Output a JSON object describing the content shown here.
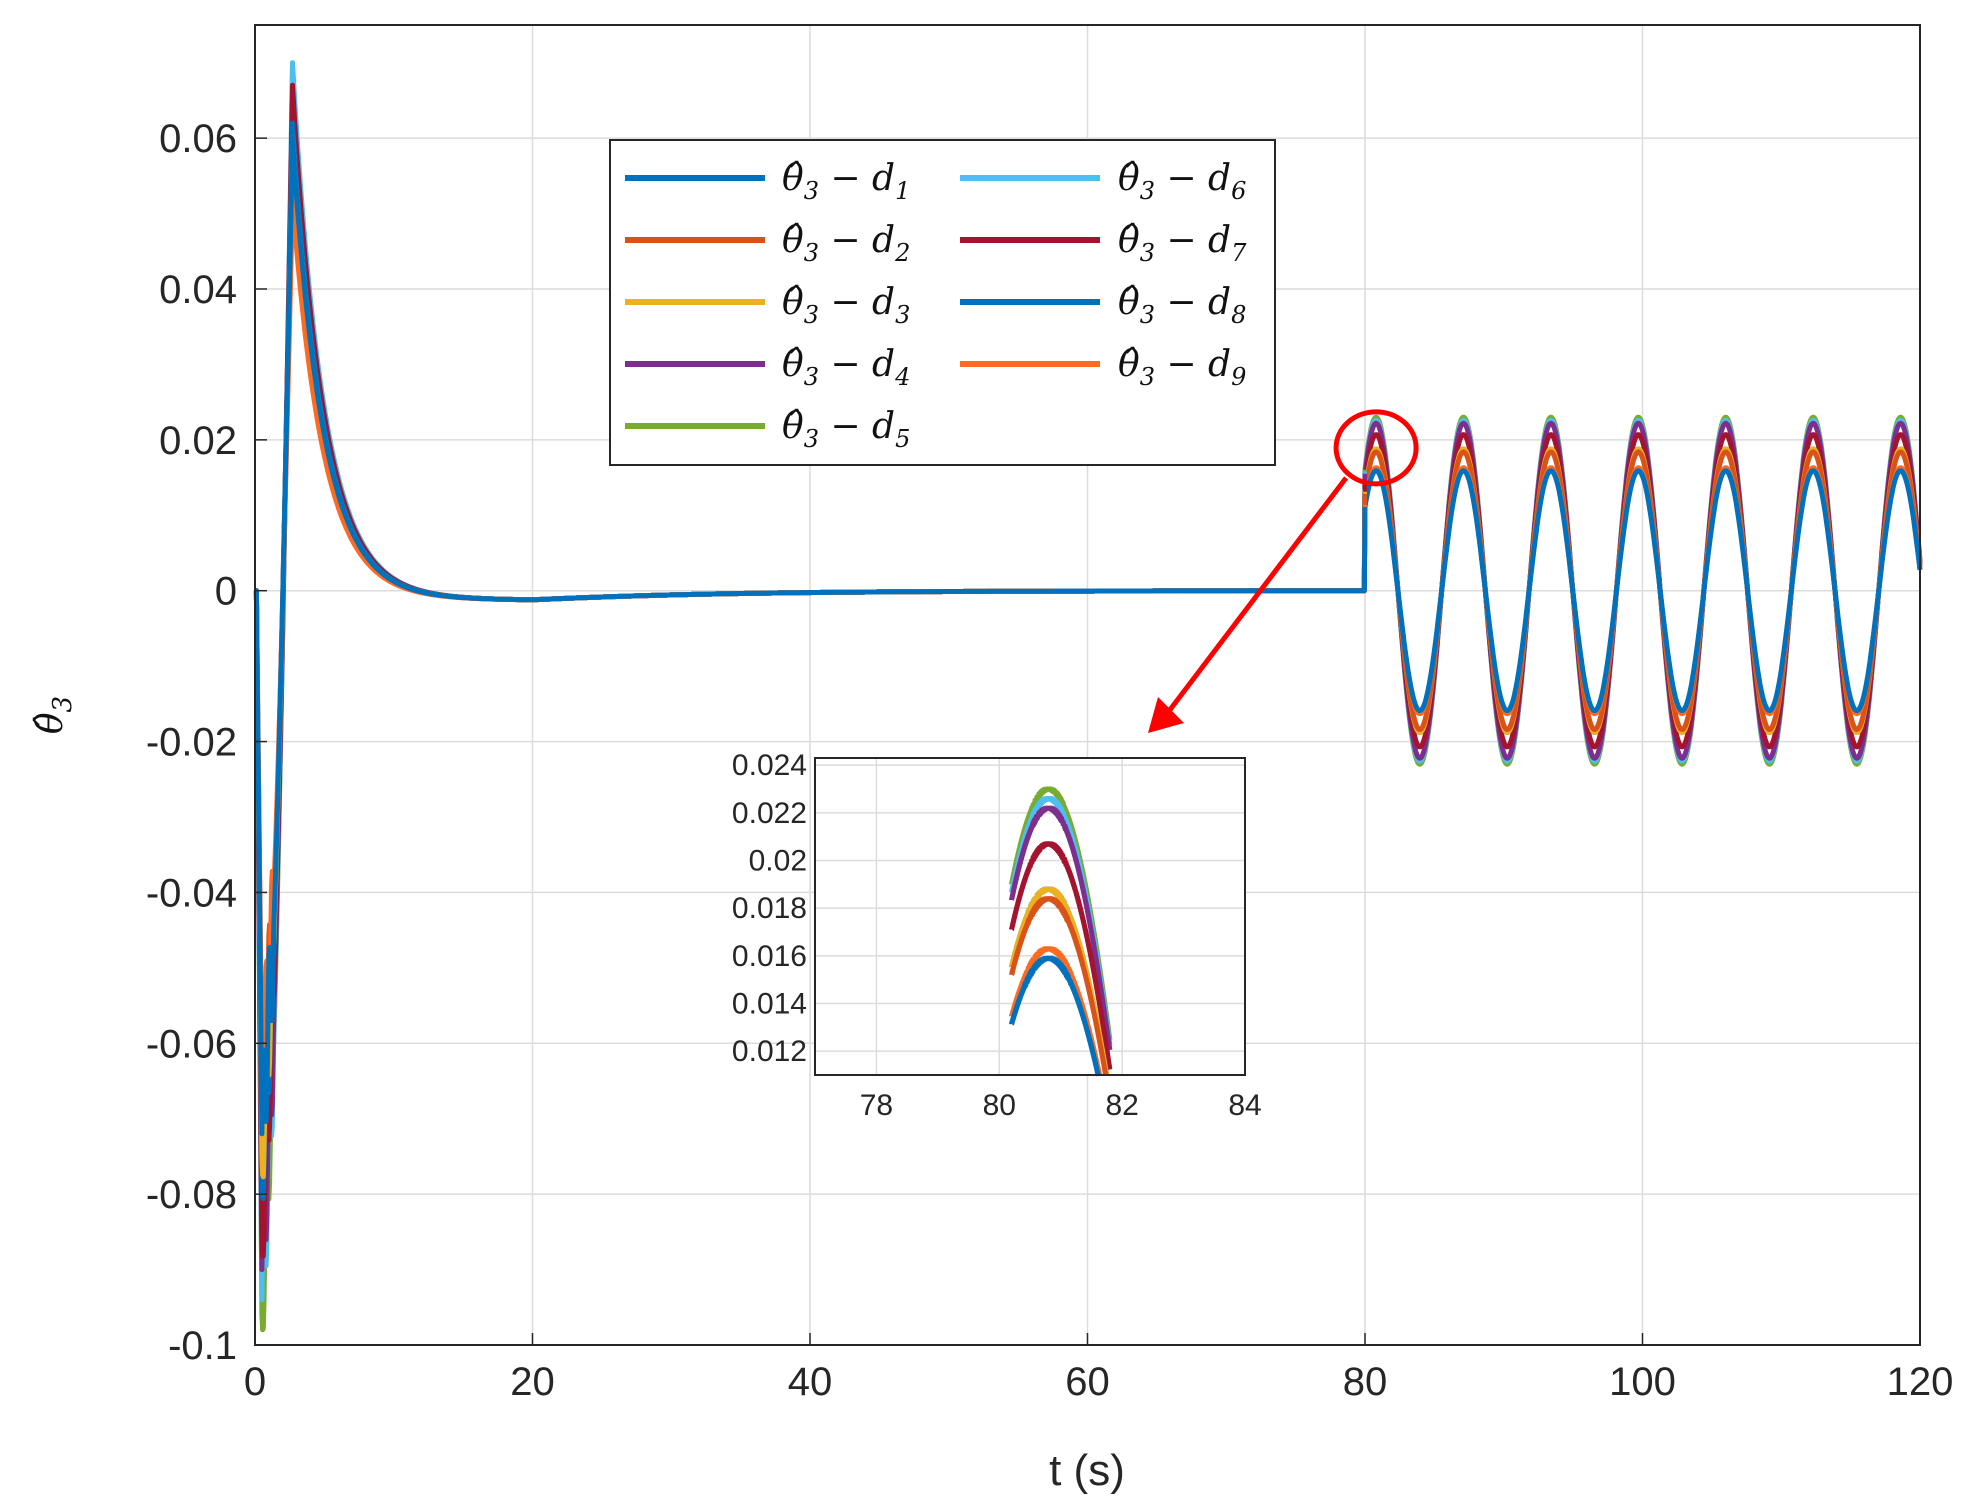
{
  "chart_data": {
    "type": "line",
    "xlabel": "t (s)",
    "ylabel": "θ̂3",
    "xlim": [
      0,
      120
    ],
    "ylim": [
      -0.1,
      0.075
    ],
    "grid": true,
    "x_ticks": [
      "0",
      "20",
      "40",
      "60",
      "80",
      "100",
      "120"
    ],
    "y_ticks": [
      "-0.1",
      "-0.08",
      "-0.06",
      "-0.04",
      "-0.02",
      "0",
      "0.02",
      "0.04",
      "0.06"
    ],
    "legend_position": "top-center",
    "series": [
      {
        "name": "θ̂3 − d1",
        "base": "θ̂",
        "sub": "3",
        "dsub": "1",
        "color": "#0072BD",
        "peak": 0.062,
        "min": -0.078,
        "osc_amp": 0.0188
      },
      {
        "name": "θ̂3 − d2",
        "base": "θ̂",
        "sub": "3",
        "dsub": "2",
        "color": "#D95319",
        "peak": 0.056,
        "min": -0.068,
        "osc_amp": 0.0184
      },
      {
        "name": "θ̂3 − d3",
        "base": "θ̂",
        "sub": "3",
        "dsub": "3",
        "color": "#EDB120",
        "peak": 0.06,
        "min": -0.075,
        "osc_amp": 0.0188
      },
      {
        "name": "θ̂3 − d4",
        "base": "θ̂",
        "sub": "3",
        "dsub": "4",
        "color": "#7E2F8E",
        "peak": 0.066,
        "min": -0.09,
        "osc_amp": 0.0222
      },
      {
        "name": "θ̂3 − d5",
        "base": "θ̂",
        "sub": "3",
        "dsub": "5",
        "color": "#77AC30",
        "peak": 0.069,
        "min": -0.096,
        "osc_amp": 0.023
      },
      {
        "name": "θ̂3 − d6",
        "base": "θ̂",
        "sub": "3",
        "dsub": "6",
        "color": "#4DBEEE",
        "peak": 0.07,
        "min": -0.094,
        "osc_amp": 0.0226
      },
      {
        "name": "θ̂3 − d7",
        "base": "θ̂",
        "sub": "3",
        "dsub": "7",
        "color": "#A2142F",
        "peak": 0.067,
        "min": -0.086,
        "osc_amp": 0.0207
      },
      {
        "name": "θ̂3 − d8",
        "base": "θ̂",
        "sub": "3",
        "dsub": "8",
        "color": "#0072BD",
        "peak": 0.06,
        "min": -0.072,
        "osc_amp": 0.0159
      },
      {
        "name": "θ̂3 − d9",
        "base": "θ̂",
        "sub": "3",
        "dsub": "9",
        "color": "#FF6A21",
        "peak": 0.052,
        "min": -0.064,
        "osc_amp": 0.0163
      }
    ],
    "signal": {
      "transient_end": 80,
      "osc_period": 6.3,
      "osc_peak_time": 80.8
    },
    "inset": {
      "xlim": [
        77,
        84
      ],
      "ylim": [
        0.011,
        0.0243
      ],
      "x_ticks": [
        "78",
        "80",
        "82",
        "84"
      ],
      "y_ticks": [
        "0.012",
        "0.014",
        "0.016",
        "0.018",
        "0.02",
        "0.022",
        "0.024"
      ]
    },
    "annotation": {
      "type": "zoom-circle-arrow",
      "color": "#FF0000",
      "center_x": 80.8,
      "center_y": 0.02
    }
  }
}
